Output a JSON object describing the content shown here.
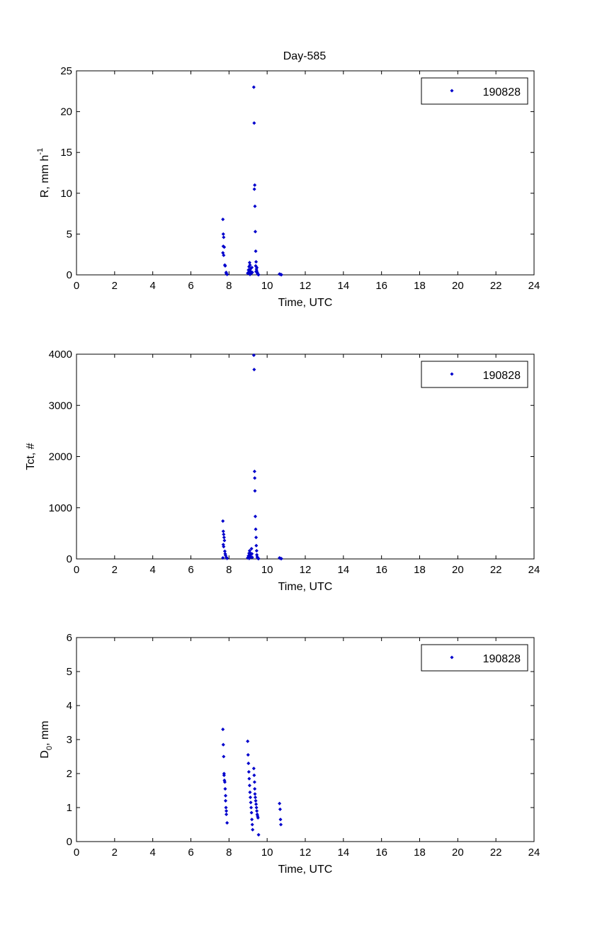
{
  "figure": {
    "title": "Day-585"
  },
  "chart_data": [
    {
      "type": "scatter",
      "title": "Day-585",
      "xlabel": "Time, UTC",
      "ylabel": "R, mm h",
      "ylabel_sup": "-1",
      "xlim": [
        0,
        24
      ],
      "ylim": [
        0,
        25
      ],
      "xticks": [
        0,
        2,
        4,
        6,
        8,
        10,
        12,
        14,
        16,
        18,
        20,
        22,
        24
      ],
      "yticks": [
        0,
        5,
        10,
        15,
        20,
        25
      ],
      "legend": "top-right",
      "grid": false,
      "series": [
        {
          "name": "190828",
          "color": "#0000cc",
          "x": [
            7.68,
            7.7,
            7.72,
            7.7,
            7.75,
            7.68,
            7.72,
            7.78,
            7.8,
            7.85,
            7.86,
            7.9,
            8.98,
            9.02,
            9.05,
            9.08,
            9.1,
            9.12,
            9.15,
            9.18,
            9.2,
            9.22,
            9.12,
            9.1,
            9.06,
            9.02,
            9.3,
            9.32,
            9.33,
            9.35,
            9.36,
            9.38,
            9.4,
            9.42,
            9.4,
            9.44,
            9.45,
            9.48,
            9.5,
            9.52,
            9.55,
            9.46,
            9.42,
            10.65,
            10.7,
            10.75
          ],
          "y": [
            6.8,
            5.0,
            4.6,
            3.5,
            3.4,
            2.7,
            2.4,
            1.2,
            1.1,
            0.3,
            0.15,
            0.05,
            0.2,
            0.6,
            1.0,
            1.5,
            1.2,
            0.7,
            0.4,
            0.2,
            0.9,
            0.3,
            0.1,
            0.05,
            0.5,
            0.3,
            23.0,
            18.6,
            10.5,
            11.0,
            8.4,
            5.3,
            2.9,
            1.6,
            1.1,
            0.7,
            0.5,
            0.3,
            0.15,
            0.05,
            0.02,
            0.9,
            0.4,
            0.1,
            0.05,
            0.02
          ]
        }
      ]
    },
    {
      "type": "scatter",
      "xlabel": "Time, UTC",
      "ylabel": "Tct, #",
      "xlim": [
        0,
        24
      ],
      "ylim": [
        0,
        4000
      ],
      "xticks": [
        0,
        2,
        4,
        6,
        8,
        10,
        12,
        14,
        16,
        18,
        20,
        22,
        24
      ],
      "yticks": [
        0,
        1000,
        2000,
        3000,
        4000
      ],
      "legend": "top-right",
      "grid": false,
      "series": [
        {
          "name": "190828",
          "color": "#0000cc",
          "x": [
            7.68,
            7.7,
            7.72,
            7.74,
            7.76,
            7.7,
            7.72,
            7.78,
            7.8,
            7.82,
            7.86,
            7.68,
            7.9,
            8.98,
            9.02,
            9.05,
            9.08,
            9.1,
            9.12,
            9.15,
            9.18,
            9.2,
            9.22,
            9.06,
            9.12,
            9.3,
            9.32,
            9.34,
            9.35,
            9.36,
            9.38,
            9.4,
            9.42,
            9.43,
            9.45,
            9.46,
            9.48,
            9.5,
            9.52,
            9.55,
            10.65,
            10.7,
            10.75
          ],
          "y": [
            740,
            540,
            480,
            420,
            360,
            280,
            240,
            150,
            100,
            70,
            30,
            20,
            10,
            20,
            60,
            110,
            160,
            120,
            80,
            40,
            200,
            100,
            30,
            10,
            50,
            3980,
            3700,
            1710,
            1580,
            1330,
            830,
            580,
            420,
            260,
            160,
            80,
            40,
            20,
            10,
            5,
            20,
            10,
            5
          ]
        }
      ]
    },
    {
      "type": "scatter",
      "xlabel": "Time, UTC",
      "ylabel": "D",
      "ylabel_sub": "0",
      "ylabel_suffix": ", mm",
      "xlim": [
        0,
        24
      ],
      "ylim": [
        0,
        6
      ],
      "xticks": [
        0,
        2,
        4,
        6,
        8,
        10,
        12,
        14,
        16,
        18,
        20,
        22,
        24
      ],
      "yticks": [
        0,
        1,
        2,
        3,
        4,
        5,
        6
      ],
      "legend": "top-right",
      "grid": false,
      "series": [
        {
          "name": "190828",
          "color": "#0000cc",
          "x": [
            7.68,
            7.7,
            7.72,
            7.74,
            7.74,
            7.76,
            7.78,
            7.8,
            7.82,
            7.82,
            7.84,
            7.86,
            7.86,
            7.9,
            8.98,
            9.0,
            9.02,
            9.04,
            9.06,
            9.08,
            9.1,
            9.12,
            9.14,
            9.16,
            9.18,
            9.2,
            9.22,
            9.24,
            9.3,
            9.32,
            9.34,
            9.35,
            9.36,
            9.38,
            9.4,
            9.42,
            9.44,
            9.46,
            9.48,
            9.5,
            9.52,
            9.55,
            10.65,
            10.68,
            10.7,
            10.72
          ],
          "y": [
            3.3,
            2.85,
            2.5,
            2.0,
            1.95,
            1.8,
            1.75,
            1.55,
            1.35,
            1.2,
            1.0,
            0.9,
            0.8,
            0.55,
            2.95,
            2.55,
            2.3,
            2.05,
            1.85,
            1.65,
            1.45,
            1.3,
            1.15,
            1.0,
            0.85,
            0.65,
            0.5,
            0.35,
            2.15,
            1.95,
            1.75,
            1.55,
            1.4,
            1.3,
            1.2,
            1.1,
            1.0,
            0.9,
            0.8,
            0.75,
            0.7,
            0.2,
            1.12,
            0.95,
            0.65,
            0.5
          ]
        }
      ]
    }
  ]
}
